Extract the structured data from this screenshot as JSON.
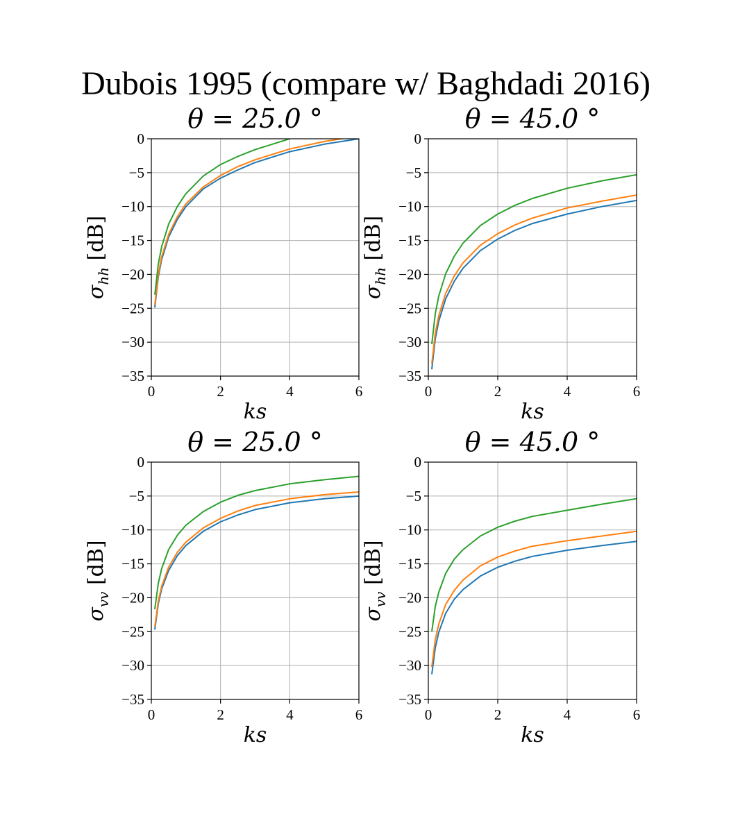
{
  "figure": {
    "suptitle": "Dubois 1995 (compare w/ Baghdadi 2016)",
    "colors": [
      "#1f77b4",
      "#ff7f0e",
      "#2ca02c"
    ],
    "grid_color": "#b0b0b0"
  },
  "chart_data": [
    {
      "type": "line",
      "title": "θ = 25.0 °",
      "xlabel": "ks",
      "ylabel_symbol": "σ",
      "ylabel_subscript": "hh",
      "ylabel_unit": " [dB]",
      "xlim": [
        0,
        6
      ],
      "ylim": [
        -35,
        0
      ],
      "xticks": [
        0,
        2,
        4,
        6
      ],
      "yticks": [
        0,
        -5,
        -10,
        -15,
        -20,
        -25,
        -30,
        -35
      ],
      "xtick_labels": [
        "0",
        "2",
        "4",
        "6"
      ],
      "ytick_labels": [
        "0",
        "−5",
        "−10",
        "−15",
        "−20",
        "−25",
        "−30",
        "−35"
      ],
      "grid": true,
      "series": [
        {
          "x": [
            0.1,
            0.2,
            0.3,
            0.5,
            0.75,
            1,
            1.5,
            2,
            2.5,
            3,
            4,
            5,
            6
          ],
          "values": [
            -24.9,
            -20.4,
            -17.8,
            -14.5,
            -11.9,
            -10.0,
            -7.4,
            -5.8,
            -4.6,
            -3.5,
            -1.9,
            -0.8,
            0.0
          ]
        },
        {
          "x": [
            0.1,
            0.2,
            0.3,
            0.5,
            0.75,
            1,
            1.5,
            2,
            2.5,
            3,
            4,
            5,
            6
          ],
          "values": [
            -24.5,
            -20.0,
            -17.4,
            -14.1,
            -11.5,
            -9.6,
            -7.1,
            -5.4,
            -4.1,
            -3.1,
            -1.5,
            -0.4,
            0.4
          ]
        },
        {
          "x": [
            0.1,
            0.2,
            0.3,
            0.5,
            0.75,
            1,
            1.5,
            2,
            2.5,
            3,
            4,
            4.6
          ],
          "values": [
            -23.0,
            -18.5,
            -15.9,
            -12.6,
            -10.0,
            -8.1,
            -5.5,
            -3.8,
            -2.6,
            -1.6,
            0.0,
            0.8
          ]
        }
      ]
    },
    {
      "type": "line",
      "title": "θ = 45.0 °",
      "xlabel": "ks",
      "ylabel_symbol": "σ",
      "ylabel_subscript": "hh",
      "ylabel_unit": " [dB]",
      "xlim": [
        0,
        6
      ],
      "ylim": [
        -35,
        0
      ],
      "xticks": [
        0,
        2,
        4,
        6
      ],
      "yticks": [
        0,
        -5,
        -10,
        -15,
        -20,
        -25,
        -30,
        -35
      ],
      "xtick_labels": [
        "0",
        "2",
        "4",
        "6"
      ],
      "ytick_labels": [
        "0",
        "−5",
        "−10",
        "−15",
        "−20",
        "−25",
        "−30",
        "−35"
      ],
      "grid": true,
      "series": [
        {
          "x": [
            0.1,
            0.2,
            0.3,
            0.5,
            0.75,
            1,
            1.5,
            2,
            2.5,
            3,
            4,
            5,
            6
          ],
          "values": [
            -34.0,
            -29.5,
            -26.9,
            -23.6,
            -21.0,
            -19.1,
            -16.5,
            -14.8,
            -13.5,
            -12.5,
            -11.1,
            -10.0,
            -9.1
          ]
        },
        {
          "x": [
            0.1,
            0.2,
            0.3,
            0.5,
            0.75,
            1,
            1.5,
            2,
            2.5,
            3,
            4,
            5,
            6
          ],
          "values": [
            -33.2,
            -28.7,
            -26.1,
            -22.8,
            -20.2,
            -18.3,
            -15.7,
            -14.0,
            -12.7,
            -11.7,
            -10.2,
            -9.2,
            -8.3
          ]
        },
        {
          "x": [
            0.1,
            0.2,
            0.3,
            0.5,
            0.75,
            1,
            1.5,
            2,
            2.5,
            3,
            4,
            5,
            6
          ],
          "values": [
            -30.3,
            -25.8,
            -23.2,
            -19.9,
            -17.3,
            -15.4,
            -12.8,
            -11.1,
            -9.8,
            -8.8,
            -7.3,
            -6.2,
            -5.3
          ]
        }
      ]
    },
    {
      "type": "line",
      "title": "θ = 25.0 °",
      "xlabel": "ks",
      "ylabel_symbol": "σ",
      "ylabel_subscript": "vv",
      "ylabel_unit": " [dB]",
      "xlim": [
        0,
        6
      ],
      "ylim": [
        -35,
        0
      ],
      "xticks": [
        0,
        2,
        4,
        6
      ],
      "yticks": [
        0,
        -5,
        -10,
        -15,
        -20,
        -25,
        -30,
        -35
      ],
      "xtick_labels": [
        "0",
        "2",
        "4",
        "6"
      ],
      "ytick_labels": [
        "0",
        "−5",
        "−10",
        "−15",
        "−20",
        "−25",
        "−30",
        "−35"
      ],
      "grid": true,
      "series": [
        {
          "x": [
            0.1,
            0.2,
            0.3,
            0.5,
            0.75,
            1,
            1.5,
            2,
            2.5,
            3,
            4,
            5,
            6
          ],
          "values": [
            -24.7,
            -20.9,
            -18.7,
            -16.0,
            -13.8,
            -12.3,
            -10.2,
            -8.8,
            -7.8,
            -7.0,
            -6.0,
            -5.4,
            -5.0
          ]
        },
        {
          "x": [
            0.1,
            0.2,
            0.3,
            0.5,
            0.75,
            1,
            1.5,
            2,
            2.5,
            3,
            4,
            5,
            6
          ],
          "values": [
            -24.3,
            -20.5,
            -18.3,
            -15.5,
            -13.3,
            -11.8,
            -9.7,
            -8.3,
            -7.2,
            -6.4,
            -5.4,
            -4.8,
            -4.4
          ]
        },
        {
          "x": [
            0.1,
            0.2,
            0.3,
            0.5,
            0.75,
            1,
            1.5,
            2,
            2.5,
            3,
            4,
            5,
            6
          ],
          "values": [
            -21.7,
            -17.9,
            -15.7,
            -12.9,
            -10.8,
            -9.3,
            -7.3,
            -5.9,
            -4.9,
            -4.2,
            -3.2,
            -2.6,
            -2.1
          ]
        }
      ]
    },
    {
      "type": "line",
      "title": "θ = 45.0 °",
      "xlabel": "ks",
      "ylabel_symbol": "σ",
      "ylabel_subscript": "vv",
      "ylabel_unit": " [dB]",
      "xlim": [
        0,
        6
      ],
      "ylim": [
        -35,
        0
      ],
      "xticks": [
        0,
        2,
        4,
        6
      ],
      "yticks": [
        0,
        -5,
        -10,
        -15,
        -20,
        -25,
        -30,
        -35
      ],
      "xtick_labels": [
        "0",
        "2",
        "4",
        "6"
      ],
      "ytick_labels": [
        "0",
        "−5",
        "−10",
        "−15",
        "−20",
        "−25",
        "−30",
        "−35"
      ],
      "grid": true,
      "series": [
        {
          "x": [
            0.1,
            0.2,
            0.3,
            0.5,
            0.75,
            1,
            1.5,
            2,
            2.5,
            3,
            4,
            5,
            6
          ],
          "values": [
            -31.3,
            -27.4,
            -25.1,
            -22.3,
            -20.2,
            -18.8,
            -16.8,
            -15.5,
            -14.6,
            -13.9,
            -13.0,
            -12.3,
            -11.7
          ]
        },
        {
          "x": [
            0.1,
            0.2,
            0.3,
            0.5,
            0.75,
            1,
            1.5,
            2,
            2.5,
            3,
            4,
            5,
            6
          ],
          "values": [
            -30.2,
            -26.2,
            -23.9,
            -21.0,
            -18.9,
            -17.4,
            -15.3,
            -14.0,
            -13.1,
            -12.4,
            -11.6,
            -10.9,
            -10.2
          ]
        },
        {
          "x": [
            0.1,
            0.2,
            0.3,
            0.5,
            0.75,
            1,
            1.5,
            2,
            2.5,
            3,
            4,
            5,
            6
          ],
          "values": [
            -25.0,
            -21.3,
            -19.2,
            -16.4,
            -14.3,
            -12.9,
            -10.9,
            -9.6,
            -8.7,
            -8.0,
            -7.1,
            -6.2,
            -5.4
          ]
        }
      ]
    }
  ]
}
